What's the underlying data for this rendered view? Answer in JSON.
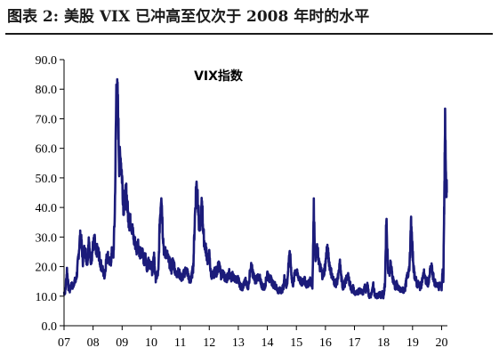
{
  "figure": {
    "title": "图表 2: 美股 VIX 已冲高至仅次于 2008 年时的水平"
  },
  "colors": {
    "series": "#1b1b7a",
    "axis": "#000000",
    "title_rule": "#1a1a1a"
  },
  "chart_data": {
    "type": "line",
    "title": "VIX指数",
    "xlabel": "",
    "ylabel": "",
    "ylim": [
      0,
      90
    ],
    "yticks": [
      "0.0",
      "10.0",
      "20.0",
      "30.0",
      "40.0",
      "50.0",
      "60.0",
      "70.0",
      "80.0",
      "90.0"
    ],
    "xlim": [
      2007.0,
      2020.2
    ],
    "xticks": [
      {
        "label": "07",
        "x": 2007
      },
      {
        "label": "08",
        "x": 2008
      },
      {
        "label": "09",
        "x": 2009
      },
      {
        "label": "10",
        "x": 2010
      },
      {
        "label": "11",
        "x": 2011
      },
      {
        "label": "12",
        "x": 2012
      },
      {
        "label": "13",
        "x": 2013
      },
      {
        "label": "14",
        "x": 2014
      },
      {
        "label": "15",
        "x": 2015
      },
      {
        "label": "16",
        "x": 2016
      },
      {
        "label": "17",
        "x": 2017
      },
      {
        "label": "18",
        "x": 2018
      },
      {
        "label": "19",
        "x": 2019
      },
      {
        "label": "20",
        "x": 2020
      }
    ],
    "grid": false,
    "legend": "none",
    "series": [
      {
        "x": [
          2007.0,
          2007.05,
          2007.1,
          2007.15,
          2007.2,
          2007.25,
          2007.3,
          2007.35,
          2007.4,
          2007.45,
          2007.5,
          2007.55,
          2007.6,
          2007.65,
          2007.7,
          2007.75,
          2007.8,
          2007.85,
          2007.9,
          2007.95,
          2008.0,
          2008.05,
          2008.1,
          2008.15,
          2008.2,
          2008.25,
          2008.3,
          2008.35,
          2008.4,
          2008.45,
          2008.5,
          2008.55,
          2008.6,
          2008.65,
          2008.7,
          2008.75,
          2008.8,
          2008.85,
          2008.9,
          2008.95,
          2009.0,
          2009.05,
          2009.1,
          2009.15,
          2009.2,
          2009.25,
          2009.3,
          2009.35,
          2009.4,
          2009.45,
          2009.5,
          2009.55,
          2009.6,
          2009.65,
          2009.7,
          2009.75,
          2009.8,
          2009.85,
          2009.9,
          2009.95,
          2010.0,
          2010.05,
          2010.1,
          2010.15,
          2010.2,
          2010.25,
          2010.3,
          2010.35,
          2010.4,
          2010.45,
          2010.5,
          2010.55,
          2010.6,
          2010.65,
          2010.7,
          2010.75,
          2010.8,
          2010.85,
          2010.9,
          2010.95,
          2011.0,
          2011.05,
          2011.1,
          2011.15,
          2011.2,
          2011.25,
          2011.3,
          2011.35,
          2011.4,
          2011.45,
          2011.5,
          2011.55,
          2011.6,
          2011.65,
          2011.7,
          2011.75,
          2011.8,
          2011.85,
          2011.9,
          2011.95,
          2012.0,
          2012.05,
          2012.1,
          2012.15,
          2012.2,
          2012.25,
          2012.3,
          2012.35,
          2012.4,
          2012.45,
          2012.5,
          2012.55,
          2012.6,
          2012.65,
          2012.7,
          2012.75,
          2012.8,
          2012.85,
          2012.9,
          2012.95,
          2013.0,
          2013.05,
          2013.1,
          2013.15,
          2013.2,
          2013.25,
          2013.3,
          2013.35,
          2013.4,
          2013.45,
          2013.5,
          2013.55,
          2013.6,
          2013.65,
          2013.7,
          2013.75,
          2013.8,
          2013.85,
          2013.9,
          2013.95,
          2014.0,
          2014.05,
          2014.1,
          2014.15,
          2014.2,
          2014.25,
          2014.3,
          2014.35,
          2014.4,
          2014.45,
          2014.5,
          2014.55,
          2014.6,
          2014.65,
          2014.7,
          2014.75,
          2014.8,
          2014.85,
          2014.9,
          2014.95,
          2015.0,
          2015.05,
          2015.1,
          2015.15,
          2015.2,
          2015.25,
          2015.3,
          2015.35,
          2015.4,
          2015.45,
          2015.5,
          2015.55,
          2015.6,
          2015.65,
          2015.7,
          2015.75,
          2015.8,
          2015.85,
          2015.9,
          2015.95,
          2016.0,
          2016.05,
          2016.1,
          2016.15,
          2016.2,
          2016.25,
          2016.3,
          2016.35,
          2016.4,
          2016.45,
          2016.5,
          2016.55,
          2016.6,
          2016.65,
          2016.7,
          2016.75,
          2016.8,
          2016.85,
          2016.9,
          2016.95,
          2017.0,
          2017.05,
          2017.1,
          2017.15,
          2017.2,
          2017.25,
          2017.3,
          2017.35,
          2017.4,
          2017.45,
          2017.5,
          2017.55,
          2017.6,
          2017.65,
          2017.7,
          2017.75,
          2017.8,
          2017.85,
          2017.9,
          2017.95,
          2018.0,
          2018.05,
          2018.1,
          2018.15,
          2018.2,
          2018.25,
          2018.3,
          2018.35,
          2018.4,
          2018.45,
          2018.5,
          2018.55,
          2018.6,
          2018.65,
          2018.7,
          2018.75,
          2018.8,
          2018.85,
          2018.9,
          2018.95,
          2019.0,
          2019.05,
          2019.1,
          2019.15,
          2019.2,
          2019.25,
          2019.3,
          2019.35,
          2019.4,
          2019.45,
          2019.5,
          2019.55,
          2019.6,
          2019.65,
          2019.7,
          2019.75,
          2019.8,
          2019.85,
          2019.9,
          2019.95,
          2020.0,
          2020.03,
          2020.06,
          2020.09,
          2020.12,
          2020.15,
          2020.18
        ],
        "y": [
          11,
          12,
          19,
          13,
          12,
          14,
          13,
          15,
          15,
          18,
          24,
          30,
          28,
          22,
          26,
          24,
          21,
          30,
          22,
          23,
          27,
          29,
          24,
          26,
          24,
          21,
          20,
          18,
          17,
          22,
          24,
          22,
          21,
          25,
          24,
          38,
          80,
          76,
          55,
          57,
          50,
          40,
          43,
          45,
          38,
          35,
          35,
          33,
          29,
          28,
          26,
          28,
          25,
          24,
          25,
          22,
          23,
          20,
          21,
          22,
          20,
          18,
          24,
          16,
          17,
          18,
          36,
          46,
          32,
          24,
          25,
          24,
          22,
          21,
          19,
          22,
          20,
          17,
          18,
          18,
          17,
          16,
          17,
          18,
          19,
          18,
          16,
          15,
          17,
          20,
          35,
          48,
          45,
          33,
          35,
          42,
          31,
          27,
          25,
          22,
          24,
          18,
          17,
          17,
          19,
          18,
          20,
          20,
          17,
          18,
          17,
          16,
          16,
          17,
          18,
          16,
          17,
          16,
          16,
          15,
          16,
          14,
          13,
          13,
          14,
          15,
          14,
          13,
          18,
          20,
          18,
          16,
          15,
          17,
          15,
          16,
          14,
          13,
          13,
          15,
          18,
          16,
          16,
          15,
          14,
          14,
          13,
          12,
          12,
          12,
          12,
          13,
          17,
          13,
          16,
          24,
          22,
          15,
          14,
          19,
          18,
          17,
          16,
          15,
          14,
          16,
          15,
          14,
          14,
          15,
          15,
          13,
          40,
          23,
          26,
          24,
          20,
          19,
          17,
          18,
          21,
          26,
          24,
          20,
          18,
          16,
          15,
          14,
          15,
          17,
          21,
          16,
          13,
          14,
          15,
          17,
          16,
          14,
          12,
          13,
          11,
          11,
          11,
          12,
          12,
          12,
          11,
          13,
          12,
          15,
          10,
          10,
          11,
          14,
          10,
          10,
          10,
          11,
          10,
          11,
          10,
          14,
          37,
          20,
          18,
          21,
          17,
          15,
          13,
          14,
          13,
          12,
          12,
          12,
          12,
          13,
          16,
          18,
          21,
          35,
          25,
          18,
          16,
          14,
          14,
          13,
          14,
          16,
          18,
          15,
          15,
          14,
          18,
          20,
          17,
          15,
          14,
          14,
          13,
          14,
          13,
          18,
          16,
          40,
          68,
          50,
          45
        ]
      }
    ]
  }
}
